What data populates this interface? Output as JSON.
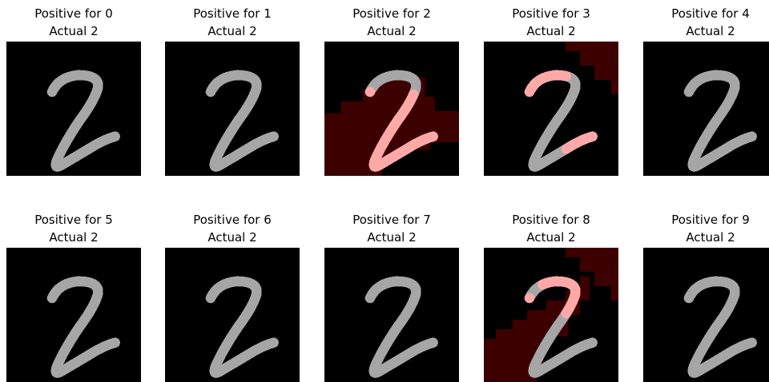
{
  "panels": [
    {
      "title": "Positive for 0",
      "subtitle": "Actual 2",
      "highlight": "none"
    },
    {
      "title": "Positive for 1",
      "subtitle": "Actual 2",
      "highlight": "none"
    },
    {
      "title": "Positive for 2",
      "subtitle": "Actual 2",
      "highlight": "bottom-left"
    },
    {
      "title": "Positive for 3",
      "subtitle": "Actual 2",
      "highlight": "top-right"
    },
    {
      "title": "Positive for 4",
      "subtitle": "Actual 2",
      "highlight": "none"
    },
    {
      "title": "Positive for 5",
      "subtitle": "Actual 2",
      "highlight": "none"
    },
    {
      "title": "Positive for 6",
      "subtitle": "Actual 2",
      "highlight": "none"
    },
    {
      "title": "Positive for 7",
      "subtitle": "Actual 2",
      "highlight": "none"
    },
    {
      "title": "Positive for 8",
      "subtitle": "Actual 2",
      "highlight": "top-right-bottom-left"
    },
    {
      "title": "Positive for 9",
      "subtitle": "Actual 2",
      "highlight": "none"
    }
  ],
  "colors": {
    "background": "#000000",
    "digit": "#a6a6a6",
    "region": "#3d0000",
    "digit_highlight": "#ffa8a8"
  }
}
